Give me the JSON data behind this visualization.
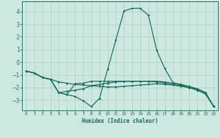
{
  "xlabel": "Humidex (Indice chaleur)",
  "bg_color": "#cce8e0",
  "grid_color": "#aacfc5",
  "line_color": "#1a6b5a",
  "xlim": [
    -0.5,
    23.5
  ],
  "ylim": [
    -3.8,
    4.8
  ],
  "xticks": [
    0,
    1,
    2,
    3,
    4,
    5,
    6,
    7,
    8,
    9,
    10,
    11,
    12,
    13,
    14,
    15,
    16,
    17,
    18,
    19,
    20,
    21,
    22,
    23
  ],
  "yticks": [
    -3,
    -2,
    -1,
    0,
    1,
    2,
    3,
    4
  ],
  "lines": [
    {
      "x": [
        0,
        1,
        2,
        3,
        4,
        5,
        6,
        7,
        8,
        9,
        10,
        11,
        12,
        13,
        14,
        15,
        16,
        17,
        18,
        19,
        20,
        21,
        22,
        23
      ],
      "y": [
        -0.7,
        -0.85,
        -1.2,
        -1.35,
        -2.4,
        -2.55,
        -2.7,
        -3.05,
        -3.5,
        -2.85,
        -0.55,
        1.75,
        4.05,
        4.25,
        4.25,
        3.7,
        0.95,
        -0.5,
        -1.6,
        -1.8,
        -2.0,
        -2.1,
        -2.4,
        -3.5
      ]
    },
    {
      "x": [
        0,
        1,
        2,
        3,
        4,
        5,
        6,
        7,
        8,
        9,
        10,
        11,
        12,
        13,
        14,
        15,
        16,
        17,
        18,
        19,
        20,
        21,
        22,
        23
      ],
      "y": [
        -0.7,
        -0.85,
        -1.2,
        -1.35,
        -2.4,
        -2.55,
        -1.7,
        -1.65,
        -1.5,
        -1.5,
        -1.5,
        -1.5,
        -1.5,
        -1.5,
        -1.5,
        -1.5,
        -1.5,
        -1.55,
        -1.65,
        -1.75,
        -1.9,
        -2.1,
        -2.4,
        -3.5
      ]
    },
    {
      "x": [
        0,
        1,
        2,
        3,
        4,
        5,
        6,
        7,
        8,
        9,
        10,
        11,
        12,
        13,
        14,
        15,
        16,
        17,
        18,
        19,
        20,
        21,
        22,
        23
      ],
      "y": [
        -0.7,
        -0.85,
        -1.2,
        -1.35,
        -1.55,
        -1.65,
        -1.75,
        -1.8,
        -1.85,
        -1.9,
        -1.95,
        -1.95,
        -1.9,
        -1.85,
        -1.8,
        -1.75,
        -1.7,
        -1.75,
        -1.8,
        -1.9,
        -2.0,
        -2.2,
        -2.5,
        -3.5
      ]
    },
    {
      "x": [
        0,
        1,
        2,
        3,
        4,
        5,
        6,
        7,
        8,
        9,
        10,
        11,
        12,
        13,
        14,
        15,
        16,
        17,
        18,
        19,
        20,
        21,
        22,
        23
      ],
      "y": [
        -0.7,
        -0.85,
        -1.2,
        -1.35,
        -2.4,
        -2.3,
        -2.2,
        -2.1,
        -1.85,
        -1.75,
        -1.65,
        -1.55,
        -1.5,
        -1.5,
        -1.5,
        -1.5,
        -1.55,
        -1.65,
        -1.75,
        -1.85,
        -2.0,
        -2.2,
        -2.5,
        -3.5
      ]
    }
  ]
}
